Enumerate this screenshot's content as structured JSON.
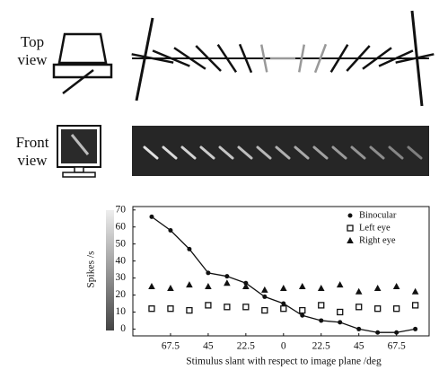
{
  "top_view_label": [
    "Top",
    "view"
  ],
  "front_view_label": [
    "Front",
    "view"
  ],
  "chart_data": {
    "type": "line",
    "x_label": "Stimulus slant with respect to image plane /deg",
    "y_label": "Spikes /s",
    "x": [
      -78.75,
      -67.5,
      -56.25,
      -45,
      -33.75,
      -22.5,
      -11.25,
      0,
      11.25,
      22.5,
      33.75,
      45,
      56.25,
      67.5,
      78.75
    ],
    "series": [
      {
        "name": "Binocular",
        "color": "#111",
        "marker": "circle",
        "values": [
          66,
          58,
          47,
          33,
          31,
          27,
          19,
          15,
          8,
          5,
          4,
          0,
          -2,
          -2,
          0
        ]
      },
      {
        "name": "Left eye",
        "color": "#111",
        "marker": "square",
        "values": [
          12,
          12,
          11,
          14,
          13,
          13,
          11,
          12,
          11,
          14,
          10,
          13,
          12,
          12,
          14
        ]
      },
      {
        "name": "Right eye",
        "color": "#111",
        "marker": "triangle",
        "values": [
          25,
          24,
          26,
          25,
          27,
          25,
          23,
          24,
          25,
          24,
          26,
          22,
          24,
          25,
          22
        ]
      }
    ],
    "xlim": [
      -90,
      87
    ],
    "ylim": [
      -4,
      72
    ],
    "xticks": [
      {
        "value": -67.5,
        "label": "67.5"
      },
      {
        "value": -45,
        "label": "45"
      },
      {
        "value": -22.5,
        "label": "22.5"
      },
      0,
      22.5,
      45,
      67.5
    ],
    "yticks": [
      0,
      10,
      20,
      30,
      40,
      50,
      60,
      70
    ]
  }
}
